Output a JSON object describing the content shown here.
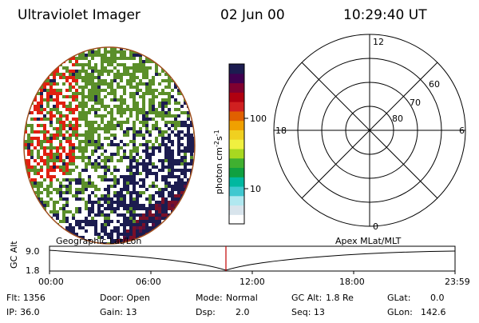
{
  "header": {
    "instrument": "Ultraviolet Imager",
    "date": "02 Jun 00",
    "time": "10:29:40 UT"
  },
  "colorbar": {
    "unit_label": "photon cm",
    "exp1": "-2",
    "s_label": "s",
    "exp2": "-1",
    "ticks": [
      {
        "label": "100"
      },
      {
        "label": "10"
      }
    ],
    "colors": [
      "#ffffff",
      "#d8e4ec",
      "#b0e8f0",
      "#40c8d0",
      "#00b8a0",
      "#10a040",
      "#40b030",
      "#a8d820",
      "#f0f040",
      "#f0d020",
      "#f0a000",
      "#e06000",
      "#d02020",
      "#b00010",
      "#800030",
      "#400050",
      "#1c1c50"
    ]
  },
  "polar_grid": {
    "cardinal_labels": {
      "top": "12",
      "bottom": "0",
      "left": "18",
      "right": "6"
    },
    "lat_labels": [
      "60",
      "70",
      "80"
    ]
  },
  "timeline": {
    "left_title": "Geographic Lat/Lon",
    "right_title": "Apex MLat/MLT",
    "axis_label": "GC Alt",
    "y_top": "9.0",
    "y_bottom": "1.8",
    "x_ticks": [
      "00:00",
      "06:00",
      "12:00",
      "18:00",
      "23:59"
    ],
    "cursor_color": "#c00000"
  },
  "footer": {
    "flt": "Flt: 1356",
    "door": "Door: Open",
    "mode_label": "Mode:",
    "mode_value": "Normal",
    "gc_alt_label": "GC Alt:",
    "gc_alt_value": "1.8 Re",
    "glat_label": "GLat:",
    "glat_value": "0.0",
    "ip": "IP: 36.0",
    "gain": "Gain: 13",
    "dsp_label": "Dsp:",
    "dsp_value": "2.0",
    "seq": "Seq: 13",
    "glon_label": "GLon:",
    "glon_value": "142.6"
  }
}
